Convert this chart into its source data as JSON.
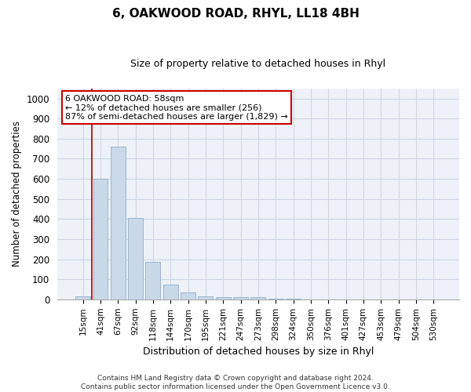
{
  "title": "6, OAKWOOD ROAD, RHYL, LL18 4BH",
  "subtitle": "Size of property relative to detached houses in Rhyl",
  "xlabel": "Distribution of detached houses by size in Rhyl",
  "ylabel": "Number of detached properties",
  "categories": [
    "15sqm",
    "41sqm",
    "67sqm",
    "92sqm",
    "118sqm",
    "144sqm",
    "170sqm",
    "195sqm",
    "221sqm",
    "247sqm",
    "273sqm",
    "298sqm",
    "324sqm",
    "350sqm",
    "376sqm",
    "401sqm",
    "427sqm",
    "453sqm",
    "479sqm",
    "504sqm",
    "530sqm"
  ],
  "values": [
    15,
    600,
    760,
    405,
    185,
    75,
    35,
    15,
    12,
    10,
    12,
    5,
    2,
    1,
    0,
    0,
    0,
    0,
    0,
    0,
    0
  ],
  "bar_color": "#c9d9ea",
  "bar_edge_color": "#9ab5cc",
  "vline_color": "#aa0000",
  "annotation_line1": "6 OAKWOOD ROAD: 58sqm",
  "annotation_line2": "← 12% of detached houses are smaller (256)",
  "annotation_line3": "87% of semi-detached houses are larger (1,829) →",
  "ylim": [
    0,
    1050
  ],
  "yticks": [
    0,
    100,
    200,
    300,
    400,
    500,
    600,
    700,
    800,
    900,
    1000
  ],
  "grid_color": "#ccd6e8",
  "bg_color": "#eef2f8",
  "footer_line1": "Contains HM Land Registry data © Crown copyright and database right 2024.",
  "footer_line2": "Contains public sector information licensed under the Open Government Licence v3.0."
}
